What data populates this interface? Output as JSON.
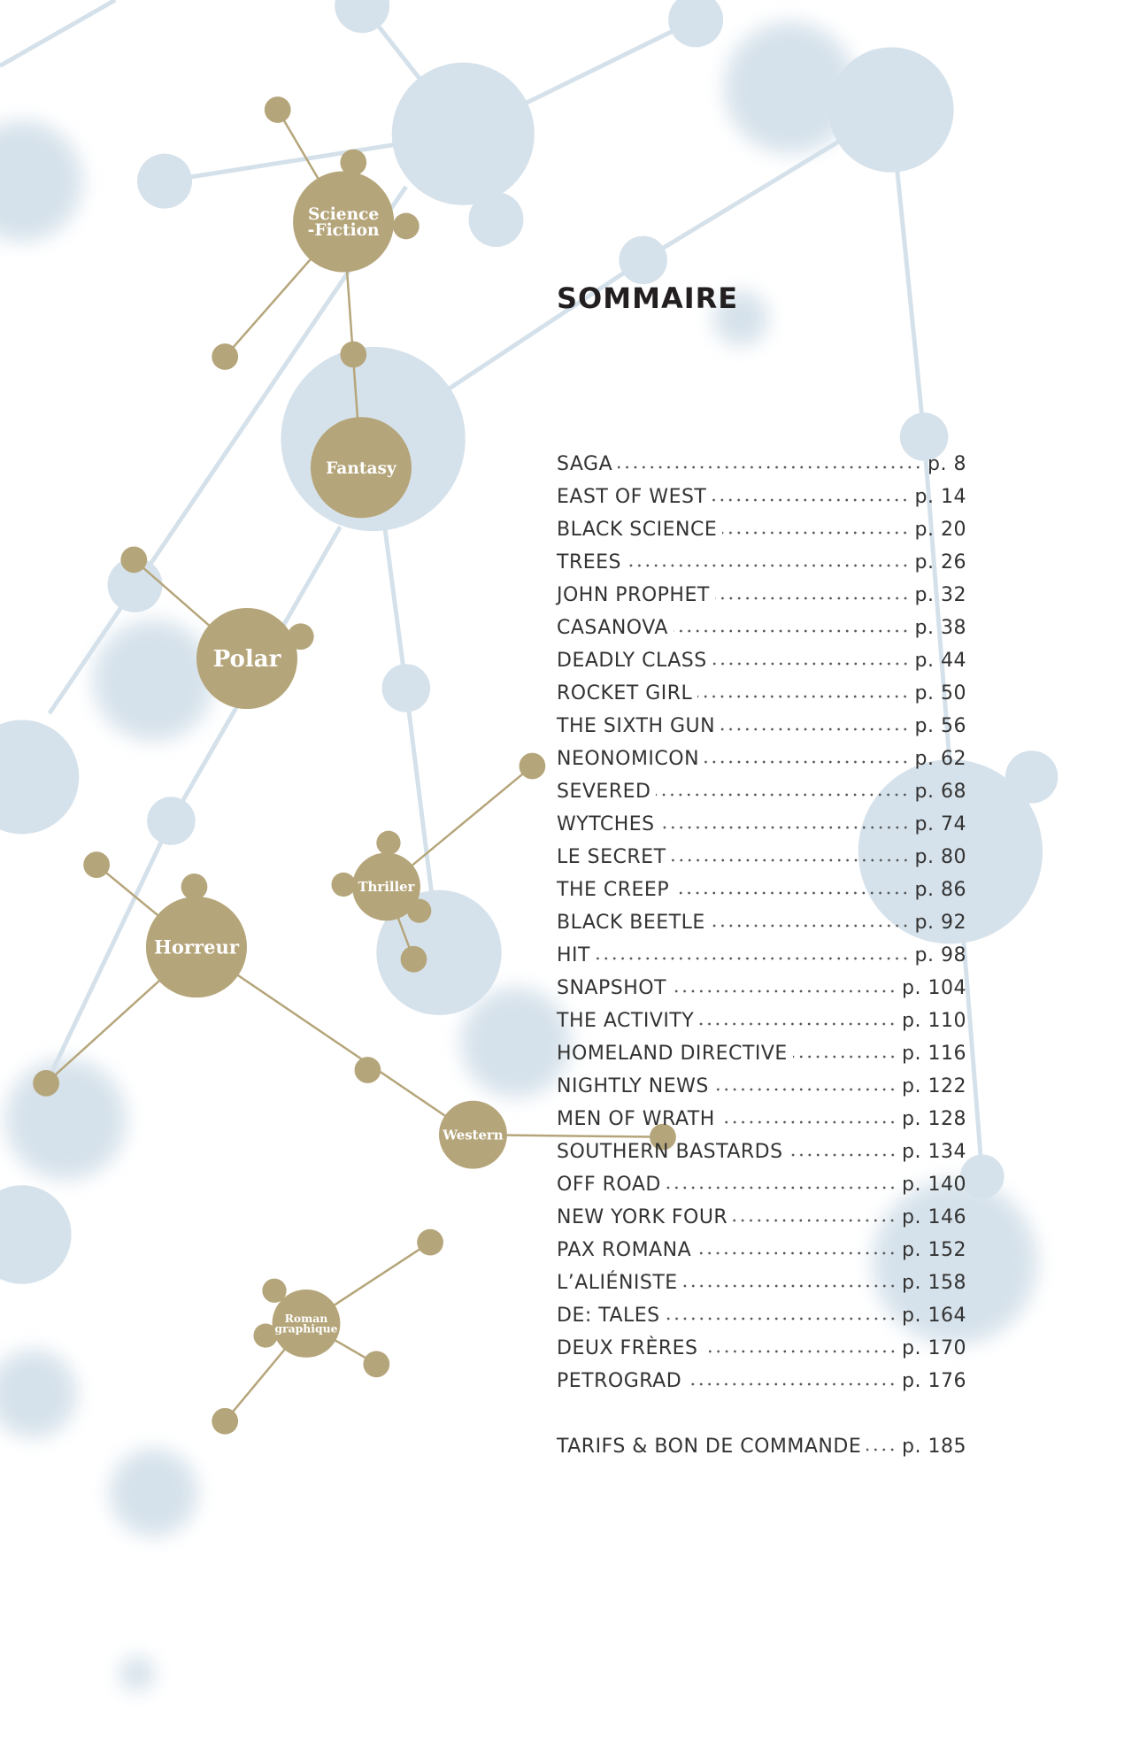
{
  "header": {
    "title": "SOMMAIRE"
  },
  "genres": [
    {
      "lines": [
        "Science",
        "-Fiction"
      ]
    },
    {
      "lines": [
        "Fantasy"
      ]
    },
    {
      "lines": [
        "Polar"
      ]
    },
    {
      "lines": [
        "Thriller"
      ]
    },
    {
      "lines": [
        "Horreur"
      ]
    },
    {
      "lines": [
        "Western"
      ]
    },
    {
      "lines": [
        "Roman",
        "graphique"
      ]
    }
  ],
  "contents": [
    {
      "title": "SAGA",
      "page": "p. 8"
    },
    {
      "title": "EAST OF WEST",
      "page": "p. 14"
    },
    {
      "title": "BLACK SCIENCE",
      "page": "p. 20"
    },
    {
      "title": "TREES",
      "page": "p. 26"
    },
    {
      "title": "JOHN PROPHET",
      "page": "p. 32"
    },
    {
      "title": "CASANOVA",
      "page": "p. 38"
    },
    {
      "title": "DEADLY CLASS",
      "page": "p. 44"
    },
    {
      "title": "ROCKET GIRL",
      "page": "p. 50"
    },
    {
      "title": "THE SIXTH GUN",
      "page": "p. 56"
    },
    {
      "title": "NEONOMICON",
      "page": "p. 62"
    },
    {
      "title": "SEVERED",
      "page": "p. 68"
    },
    {
      "title": "WYTCHES",
      "page": "p. 74"
    },
    {
      "title": "LE SECRET",
      "page": "p. 80"
    },
    {
      "title": "THE CREEP",
      "page": "p. 86"
    },
    {
      "title": "BLACK BEETLE",
      "page": "p. 92"
    },
    {
      "title": "HIT",
      "page": "p. 98"
    },
    {
      "title": "SNAPSHOT",
      "page": "p. 104"
    },
    {
      "title": "THE ACTIVITY",
      "page": "p. 110"
    },
    {
      "title": "HOMELAND DIRECTIVE",
      "page": "p. 116"
    },
    {
      "title": "NIGHTLY NEWS",
      "page": "p. 122"
    },
    {
      "title": "MEN OF WRATH",
      "page": "p. 128"
    },
    {
      "title": "SOUTHERN BASTARDS",
      "page": "p. 134"
    },
    {
      "title": "OFF ROAD",
      "page": "p. 140"
    },
    {
      "title": "NEW YORK FOUR",
      "page": "p. 146"
    },
    {
      "title": "PAX ROMANA",
      "page": "p. 152"
    },
    {
      "title": "L’ALIÉNISTE",
      "page": "p. 158"
    },
    {
      "title": "DE: TALES",
      "page": "p. 164"
    },
    {
      "title": "DEUX FRÈRES",
      "page": "p. 170"
    },
    {
      "title": "PETROGRAD",
      "page": "p. 176"
    }
  ],
  "footer": {
    "title": "TARIFS & BON DE COMMANDE",
    "page": "p. 185"
  }
}
